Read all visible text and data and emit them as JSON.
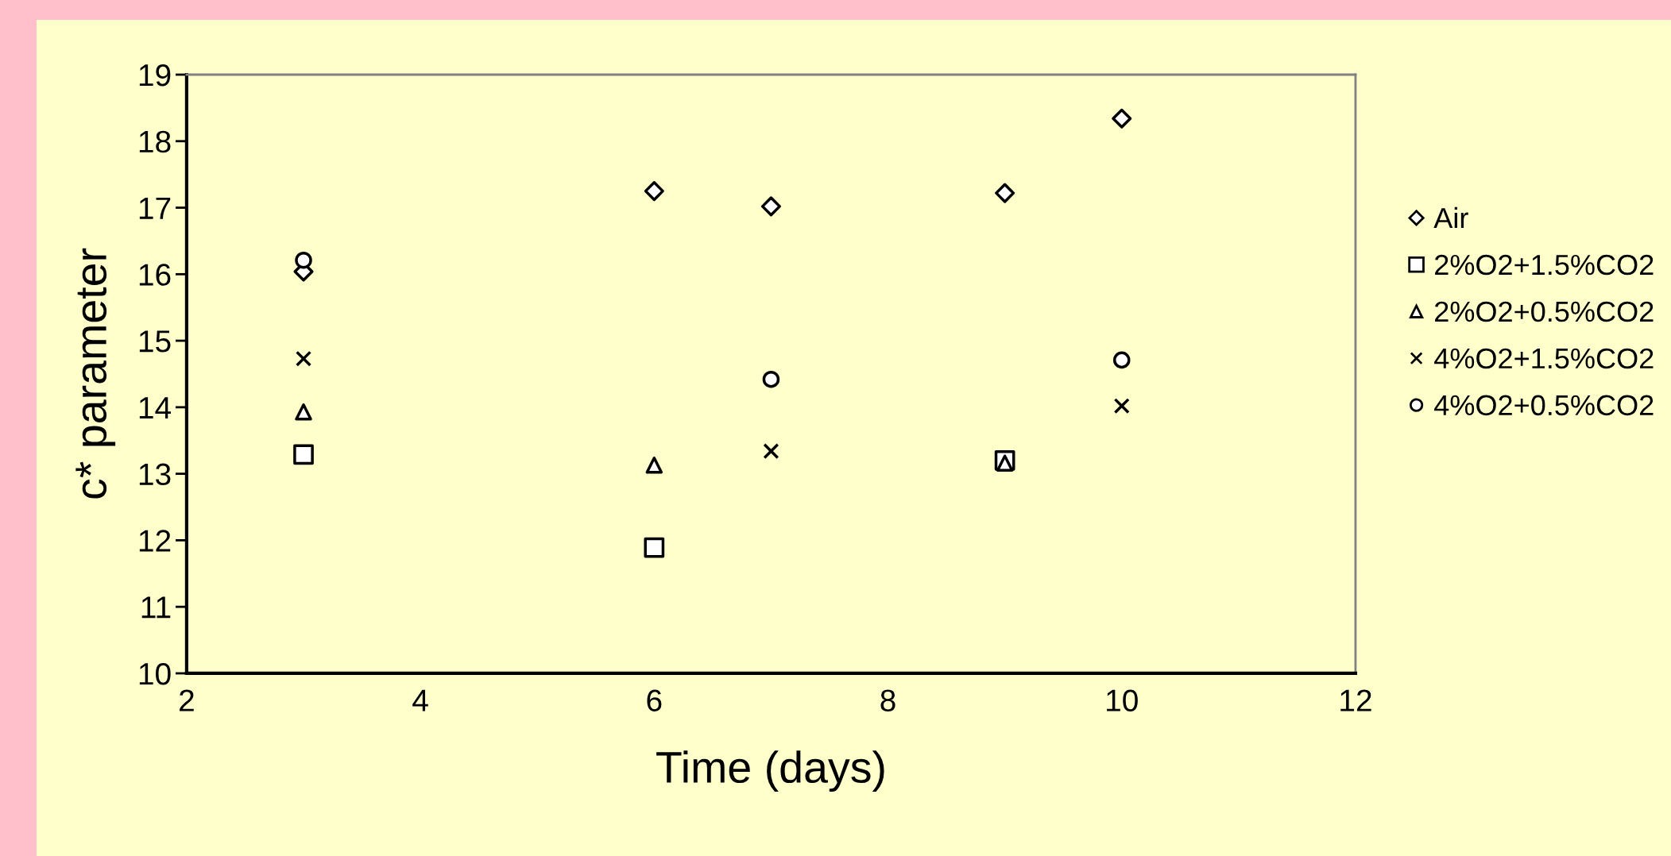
{
  "chart_data": {
    "type": "scatter",
    "xlabel": "Time (days)",
    "ylabel": "c* parameter",
    "xlim": [
      2,
      12
    ],
    "xticks": [
      2,
      4,
      6,
      8,
      10,
      12
    ],
    "ylim": [
      10,
      19
    ],
    "yticks": [
      10,
      11,
      12,
      13,
      14,
      15,
      16,
      17,
      18,
      19
    ],
    "grid": false,
    "legend": "right",
    "series": [
      {
        "name": "Air",
        "color": "#000000",
        "marker": "diamond",
        "x": [
          3,
          6,
          7,
          9,
          10
        ],
        "values": [
          16.04,
          17.25,
          17.02,
          17.22,
          18.34
        ]
      },
      {
        "name": "2%O2+1.5%CO2",
        "color": "#000000",
        "marker": "square",
        "x": [
          3,
          6,
          9
        ],
        "values": [
          13.29,
          11.89,
          13.2
        ]
      },
      {
        "name": "2%O2+0.5%CO2",
        "color": "#000000",
        "marker": "triangle",
        "x": [
          3,
          6,
          9
        ],
        "values": [
          13.93,
          13.13,
          13.16
        ]
      },
      {
        "name": "4%O2+1.5%CO2",
        "color": "#000000",
        "marker": "cross",
        "x": [
          3,
          7,
          10
        ],
        "values": [
          14.73,
          13.34,
          14.02
        ]
      },
      {
        "name": "4%O2+0.5%CO2",
        "color": "#000000",
        "marker": "circle",
        "x": [
          3,
          7,
          10
        ],
        "values": [
          16.21,
          14.42,
          14.71
        ]
      }
    ]
  }
}
